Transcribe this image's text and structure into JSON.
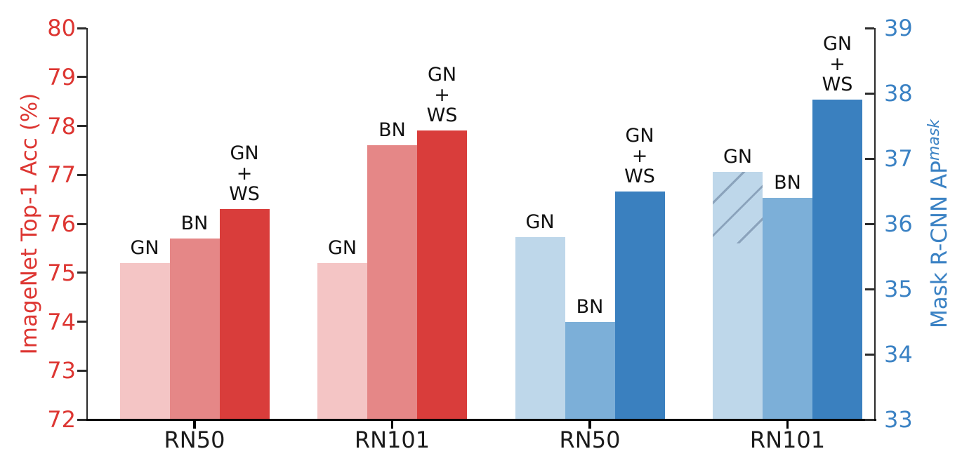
{
  "chart_data": {
    "type": "bar",
    "title": "",
    "grid": false,
    "legend": false,
    "background_color": "#ffffff",
    "left_axis": {
      "label": "ImageNet Top-1 Acc (%)",
      "color": "#dd3632",
      "min": 72,
      "max": 80,
      "ticks": [
        "72",
        "73",
        "74",
        "75",
        "76",
        "77",
        "78",
        "79",
        "80"
      ]
    },
    "right_axis": {
      "label": "Mask R-CNN AP",
      "label_sup": "mask",
      "color": "#3b82c4",
      "min": 33,
      "max": 39,
      "ticks": [
        "33",
        "34",
        "35",
        "36",
        "37",
        "38",
        "39"
      ]
    },
    "bar_colors": {
      "left": [
        "#f4c5c5",
        "#e58787",
        "#d93d3b"
      ],
      "right": [
        "#bed7ea",
        "#7cafd8",
        "#3a80bf"
      ]
    },
    "spine_color": "#2b2b2b",
    "bottom_spine_color": "#000000",
    "groups": [
      {
        "category": "RN50",
        "axis": "left",
        "bars": [
          {
            "label_lines": [
              "GN"
            ],
            "value": 75.2
          },
          {
            "label_lines": [
              "BN"
            ],
            "value": 75.7
          },
          {
            "label_lines": [
              "GN",
              "+",
              "WS"
            ],
            "value": 76.3
          }
        ]
      },
      {
        "category": "RN101",
        "axis": "left",
        "bars": [
          {
            "label_lines": [
              "GN"
            ],
            "value": 75.2
          },
          {
            "label_lines": [
              "BN"
            ],
            "value": 77.6
          },
          {
            "label_lines": [
              "GN",
              "+",
              "WS"
            ],
            "value": 77.9
          }
        ]
      },
      {
        "category": "RN50",
        "axis": "right",
        "bars": [
          {
            "label_lines": [
              "GN"
            ],
            "value": 35.8
          },
          {
            "label_lines": [
              "BN"
            ],
            "value": 34.5
          },
          {
            "label_lines": [
              "GN",
              "+",
              "WS"
            ],
            "value": 36.5
          }
        ]
      },
      {
        "category": "RN101",
        "axis": "right",
        "bars": [
          {
            "label_lines": [
              "GN"
            ],
            "value": 36.8,
            "hatch_from": 35.7
          },
          {
            "label_lines": [
              "BN"
            ],
            "value": 36.4
          },
          {
            "label_lines": [
              "GN",
              "+",
              "WS"
            ],
            "value": 37.9
          }
        ]
      }
    ]
  }
}
